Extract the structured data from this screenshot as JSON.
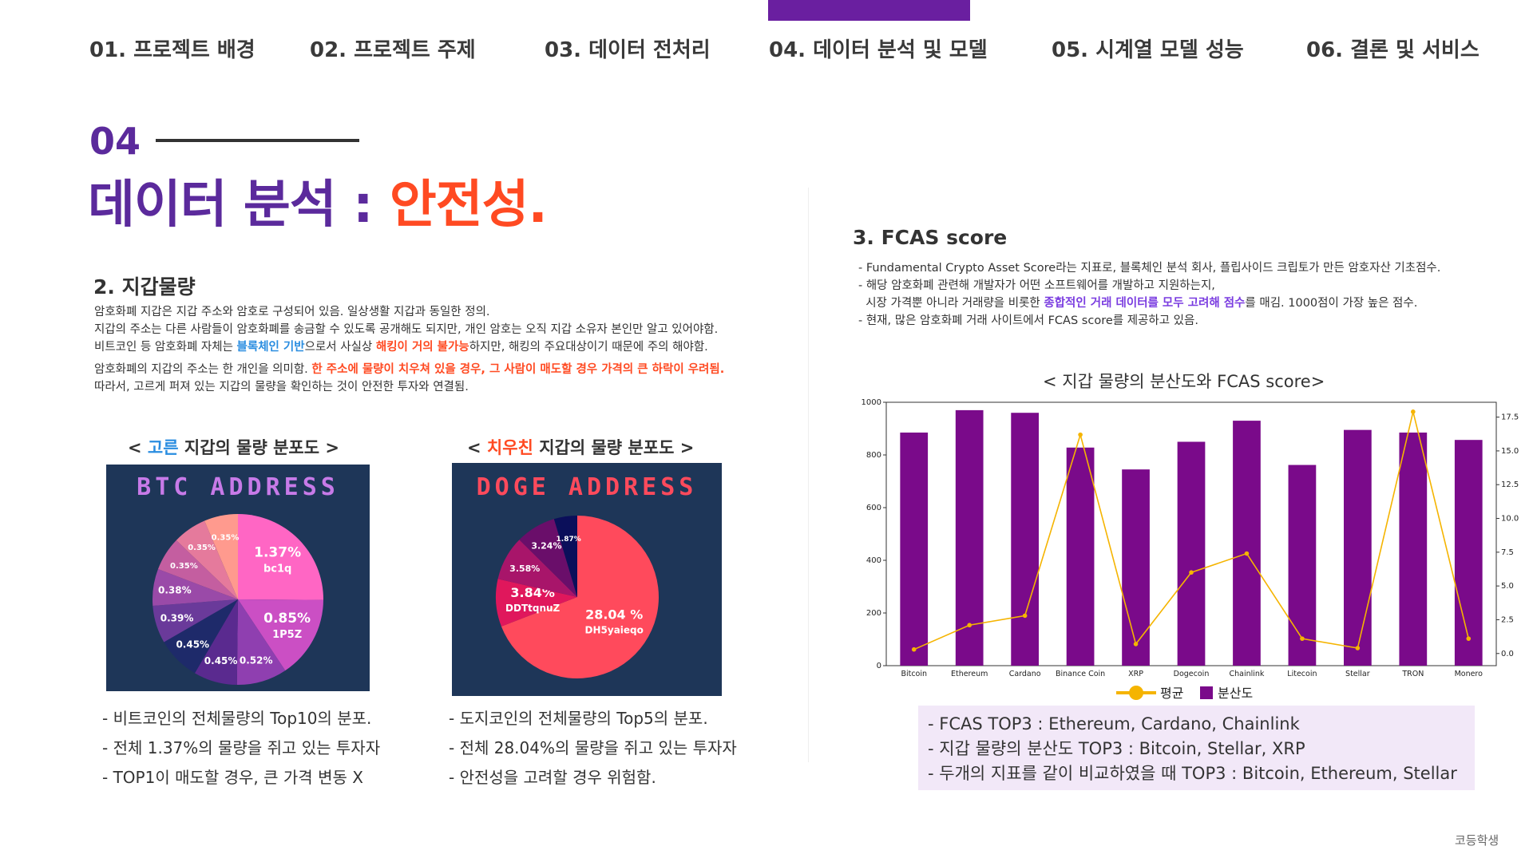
{
  "nav": {
    "items": [
      {
        "label": "01. 프로젝트 배경"
      },
      {
        "label": "02. 프로젝트 주제"
      },
      {
        "label": "03. 데이터 전처리"
      },
      {
        "label": "04. 데이터 분석 및 모델"
      },
      {
        "label": "05. 시계열 모델 성능"
      },
      {
        "label": "06. 결론 및 서비스"
      }
    ],
    "active_index": 3
  },
  "section": {
    "number": "04",
    "title_main": "데이터 분석 : ",
    "title_accent": "안전성."
  },
  "wallet": {
    "heading": "2. 지갑물량",
    "line1": "암호화폐 지갑은 지갑 주소와 암호로 구성되어 있음. 일상생활 지갑과 동일한 정의.",
    "line2": "지갑의 주소는 다른 사람들이 암호화폐를 송금할 수 있도록 공개해도 되지만, 개인 암호는 오직 지갑 소유자 본인만 알고 있어야함.",
    "line3_a": "비트코인 등 암호화폐 자체는 ",
    "line3_b": "블록체인 기반",
    "line3_c": "으로서 사실상 ",
    "line3_d": "해킹이 거의 불가능",
    "line3_e": "하지만, 해킹의 주요대상이기 때문에 주의 해야함.",
    "line4_a": "암호화폐의 지갑의 주소는 한 개인을 의미함. ",
    "line4_b": "한 주소에 물량이 치우쳐 있을 경우, 그 사람이 매도할 경우 가격의 큰 하락이 우려됨.",
    "line5": "따라서, 고르게 퍼져 있는 지갑의 물량을 확인하는 것이 안전한 투자와 연결됨."
  },
  "btc": {
    "caption_a": "< ",
    "caption_hl": "고른",
    "caption_b": " 지갑의 물량 분포도 >",
    "title": "BTC ADDRESS",
    "slices": [
      {
        "value": 1.37,
        "label": "1.37%",
        "sub": "bc1q",
        "color": "#ff66c4"
      },
      {
        "value": 0.85,
        "label": "0.85%",
        "sub": "1P5Z",
        "color": "#cb4fc4"
      },
      {
        "value": 0.52,
        "label": "0.52%",
        "sub": "",
        "color": "#8f3fb0"
      },
      {
        "value": 0.45,
        "label": "0.45%",
        "sub": "",
        "color": "#5a2a8f"
      },
      {
        "value": 0.45,
        "label": "0.45%",
        "sub": "",
        "color": "#1e2a6a"
      },
      {
        "value": 0.39,
        "label": "0.39%",
        "sub": "",
        "color": "#6a3a9a"
      },
      {
        "value": 0.38,
        "label": "0.38%",
        "sub": "",
        "color": "#9a4aa8"
      },
      {
        "value": 0.35,
        "label": "0.35%",
        "sub": "",
        "color": "#c45ea0"
      },
      {
        "value": 0.35,
        "label": "0.35%",
        "sub": "",
        "color": "#e57a9c"
      },
      {
        "value": 0.35,
        "label": "0.35%",
        "sub": "",
        "color": "#ff9a8e"
      }
    ],
    "bullets": [
      "- 비트코인의 전체물량의 Top10의 분포.",
      "- 전체 1.37%의 물량을 쥐고 있는 투자자",
      "- TOP1이 매도할 경우, 큰 가격 변동 X"
    ]
  },
  "doge": {
    "caption_a": "< ",
    "caption_hl": "치우친",
    "caption_b": " 지갑의 물량 분포도 >",
    "title": "DOGE ADDRESS",
    "slices": [
      {
        "value": 28.04,
        "label": "28.04 %",
        "sub": "DH5yaieqo",
        "color": "#ff4a5c"
      },
      {
        "value": 3.84,
        "label": "3.84%",
        "sub": "DDTtqnuZ",
        "color": "#e0175c"
      },
      {
        "value": 3.58,
        "label": "3.58%",
        "sub": "",
        "color": "#a8156a"
      },
      {
        "value": 3.24,
        "label": "3.24%",
        "sub": "",
        "color": "#6a0e6a"
      },
      {
        "value": 1.87,
        "label": "1.87%",
        "sub": "",
        "color": "#0b0f5a"
      }
    ],
    "bullets": [
      "- 도지코인의 전체물량의 Top5의 분포.",
      "- 전체 28.04%의 물량을 쥐고 있는 투자자",
      "- 안전성을 고려할 경우 위험함."
    ]
  },
  "fcas": {
    "heading": "3. FCAS score",
    "line1": "- Fundamental Crypto Asset Score라는 지표로, 블록체인 분석 회사, 플립사이드 크립토가 만든 암호자산 기초점수.",
    "line2": "- 해당 암호화폐 관련해 개발자가 어떤 소프트웨어를 개발하고 지원하는지,",
    "line3_a": "  시장 가격뿐 아니라 거래량을 비롯한 ",
    "line3_b": "종합적인 거래 데이터를 모두 고려해 점수",
    "line3_c": "를 매김. 1000점이 가장 높은 점수.",
    "line4": "- 현재, 많은 암호화폐 거래 사이트에서 FCAS score를 제공하고 있음."
  },
  "chart_title": "< 지갑 물량의 분산도와 FCAS score>",
  "chart_data": {
    "type": "bar",
    "categories": [
      "Bitcoin",
      "Ethereum",
      "Cardano",
      "Binance Coin",
      "XRP",
      "Dogecoin",
      "Chainlink",
      "Litecoin",
      "Stellar",
      "TRON",
      "Monero"
    ],
    "series": [
      {
        "name": "분산도",
        "type": "bar",
        "axis": "left",
        "color": "#7a0a8a",
        "values": [
          885,
          970,
          960,
          828,
          745,
          850,
          930,
          762,
          895,
          885,
          857
        ]
      },
      {
        "name": "평균",
        "type": "line",
        "axis": "right",
        "color": "#f5b400",
        "values": [
          0.3,
          2.1,
          2.8,
          16.2,
          0.7,
          6.0,
          7.4,
          1.1,
          0.4,
          17.9,
          1.1
        ]
      }
    ],
    "ylim": [
      0,
      1000
    ],
    "y_ticks": [
      0,
      200,
      400,
      600,
      800,
      1000
    ],
    "y2lim": [
      -0.9,
      18.6
    ],
    "y2_ticks": [
      "0.0",
      "2.5",
      "5.0",
      "7.5",
      "10.0",
      "12.5",
      "15.0",
      "17.5"
    ],
    "legend_position": "bottom-center",
    "grid": false
  },
  "summary": {
    "line1": "- FCAS TOP3 : Ethereum, Cardano, Chainlink",
    "line2": "- 지갑 물량의 분산도 TOP3 : Bitcoin, Stellar, XRP",
    "line3": "- 두개의 지표를 같이 비교하였을 때 TOP3 : Bitcoin, Ethereum, Stellar"
  },
  "footer": "코등학생"
}
